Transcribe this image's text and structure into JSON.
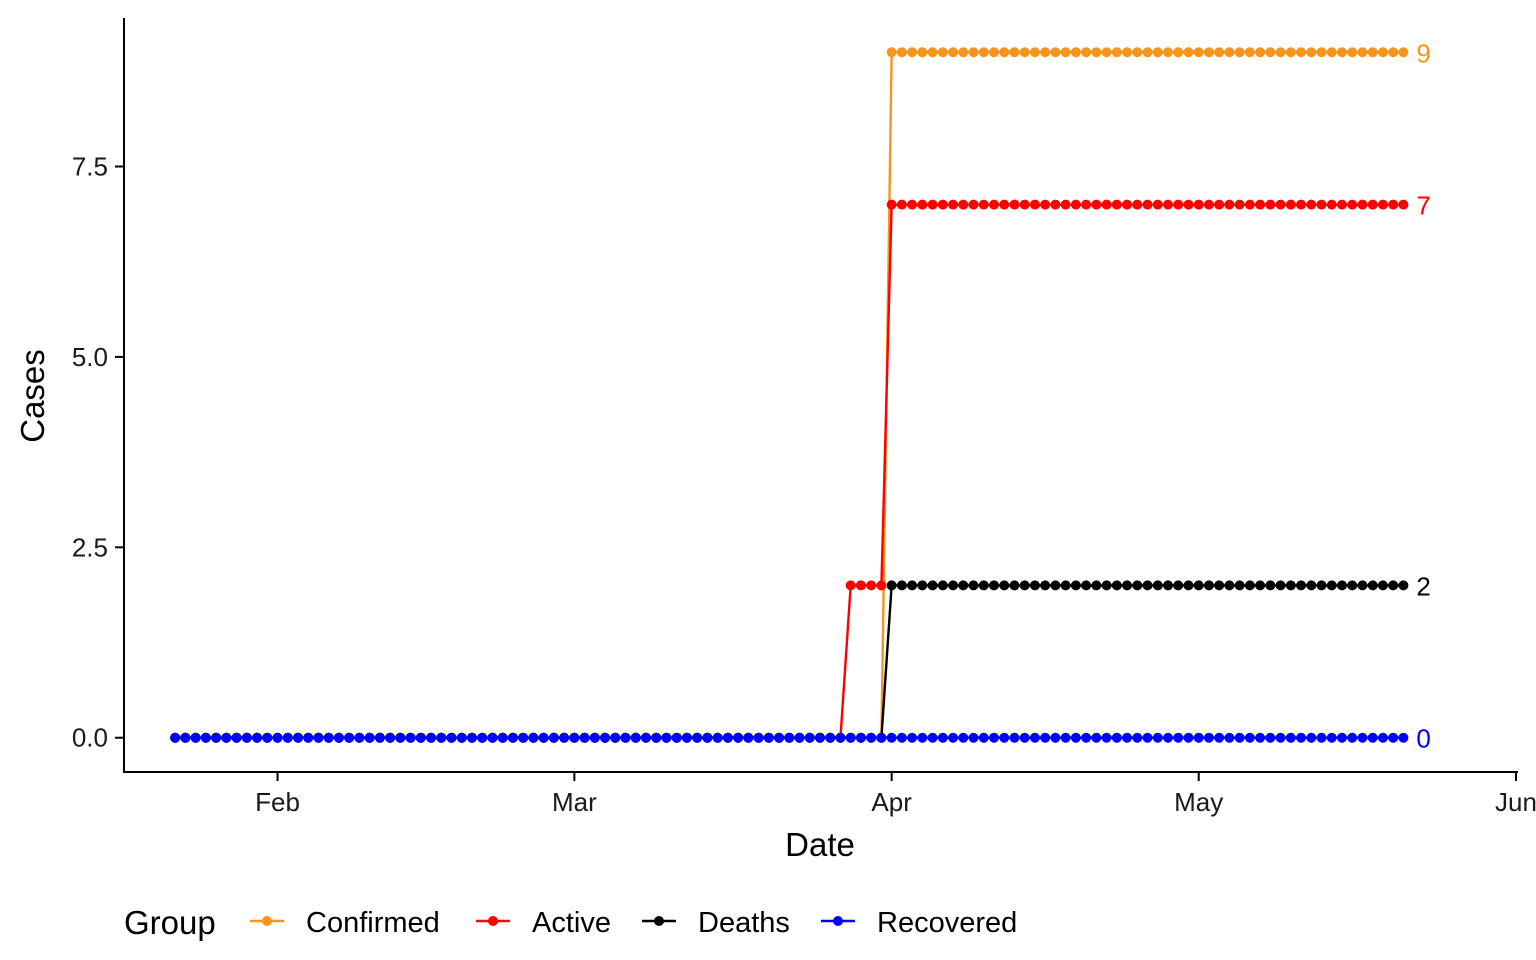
{
  "chart_data": {
    "type": "line",
    "xlabel": "Date",
    "ylabel": "Cases",
    "x_tick_labels": [
      "Feb",
      "Mar",
      "Apr",
      "May",
      "Jun"
    ],
    "x_ticks": [
      "2020-02-01",
      "2020-03-01",
      "2020-04-01",
      "2020-05-01",
      "2020-06-01"
    ],
    "y_tick_labels": [
      "0.0",
      "2.5",
      "5.0",
      "7.5"
    ],
    "y_ticks": [
      0,
      2.5,
      5,
      7.5
    ],
    "xlim": [
      "2020-01-17",
      "2020-06-01"
    ],
    "ylim": [
      -0.45,
      9.45
    ],
    "x_range": [
      "2020-01-22",
      "2020-05-21"
    ],
    "legend_title": "Group",
    "legend_position": "bottom",
    "grid": false,
    "series": [
      {
        "name": "Confirmed",
        "color": "#F7941D",
        "end_label": "9",
        "steps": [
          {
            "from": "2020-01-22",
            "value": 0
          },
          {
            "from": "2020-04-01",
            "value": 9
          }
        ]
      },
      {
        "name": "Active",
        "color": "#FF0000",
        "end_label": "7",
        "steps": [
          {
            "from": "2020-01-22",
            "value": 0
          },
          {
            "from": "2020-03-28",
            "value": 2
          },
          {
            "from": "2020-04-01",
            "value": 7
          }
        ]
      },
      {
        "name": "Deaths",
        "color": "#000000",
        "end_label": "2",
        "steps": [
          {
            "from": "2020-01-22",
            "value": 0
          },
          {
            "from": "2020-04-01",
            "value": 2
          }
        ]
      },
      {
        "name": "Recovered",
        "color": "#0000FF",
        "end_label": "0",
        "steps": [
          {
            "from": "2020-01-22",
            "value": 0
          }
        ]
      }
    ]
  }
}
